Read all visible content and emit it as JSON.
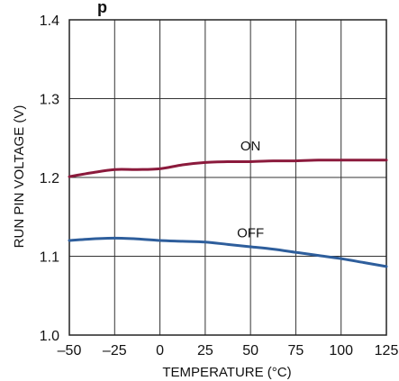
{
  "chart_data": {
    "type": "line",
    "title": "",
    "title_fragment": "p",
    "xlabel": "TEMPERATURE (°C)",
    "ylabel": "RUN PIN VOLTAGE (V)",
    "xlim": [
      -50,
      125
    ],
    "ylim": [
      1.0,
      1.4
    ],
    "x_ticks": [
      -50,
      -25,
      0,
      25,
      50,
      75,
      100,
      125
    ],
    "x_tick_labels": [
      "–50",
      "–25",
      "0",
      "25",
      "50",
      "75",
      "100",
      "125"
    ],
    "y_ticks": [
      1.0,
      1.1,
      1.2,
      1.3,
      1.4
    ],
    "y_tick_labels": [
      "1.0",
      "1.1",
      "1.2",
      "1.3",
      "1.4"
    ],
    "grid": true,
    "series": [
      {
        "name": "ON",
        "color": "#8b1a3c",
        "x": [
          -50,
          -37.5,
          -25,
          -12.5,
          0,
          12.5,
          25,
          37.5,
          50,
          62.5,
          75,
          87.5,
          100,
          112.5,
          125
        ],
        "y": [
          1.201,
          1.206,
          1.21,
          1.21,
          1.211,
          1.216,
          1.219,
          1.22,
          1.22,
          1.221,
          1.221,
          1.222,
          1.222,
          1.222,
          1.222
        ]
      },
      {
        "name": "OFF",
        "color": "#2e5e9c",
        "x": [
          -50,
          -37.5,
          -25,
          -12.5,
          0,
          12.5,
          25,
          37.5,
          50,
          62.5,
          75,
          87.5,
          100,
          112.5,
          125
        ],
        "y": [
          1.12,
          1.122,
          1.123,
          1.122,
          1.12,
          1.119,
          1.118,
          1.115,
          1.112,
          1.109,
          1.105,
          1.101,
          1.097,
          1.092,
          1.087
        ]
      }
    ]
  }
}
